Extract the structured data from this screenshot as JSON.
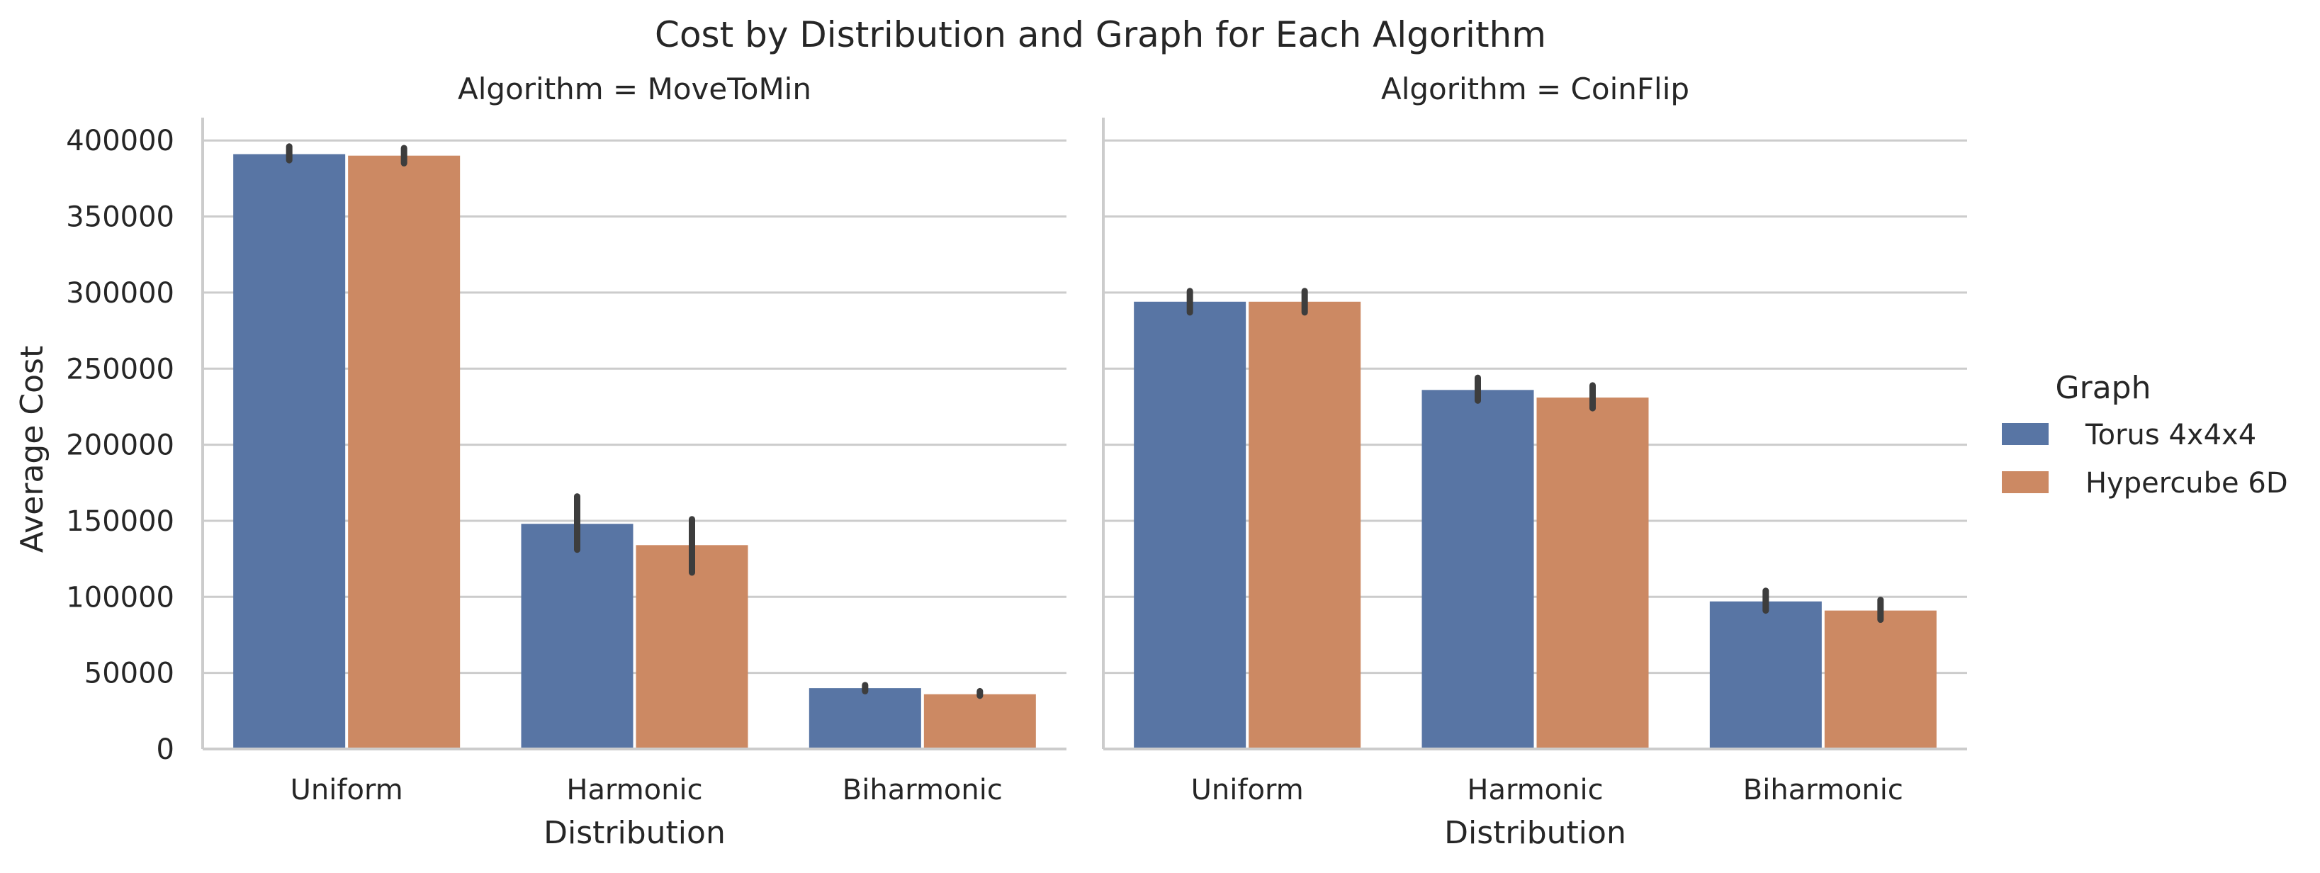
{
  "chart_data": {
    "type": "bar",
    "title": "Cost by Distribution and Graph for Each Algorithm",
    "ylabel": "Average Cost",
    "xlabel": "Distribution",
    "ylim": [
      0,
      415000
    ],
    "yticks": [
      0,
      50000,
      100000,
      150000,
      200000,
      250000,
      300000,
      350000,
      400000
    ],
    "categories": [
      "Uniform",
      "Harmonic",
      "Biharmonic"
    ],
    "grid": "horizontal",
    "legend": {
      "title": "Graph",
      "placement": "right",
      "entries": [
        "Torus 4x4x4",
        "Hypercube 6D"
      ]
    },
    "colors": {
      "Torus 4x4x4": "#5875a4",
      "Hypercube 6D": "#cc8963"
    },
    "panels": [
      {
        "title": "Algorithm = MoveToMin",
        "series": [
          {
            "name": "Torus 4x4x4",
            "values": [
              391000,
              148000,
              40000
            ],
            "ci": [
              [
                387000,
                396000
              ],
              [
                131000,
                166000
              ],
              [
                38000,
                42000
              ]
            ]
          },
          {
            "name": "Hypercube 6D",
            "values": [
              390000,
              134000,
              36000
            ],
            "ci": [
              [
                385000,
                395000
              ],
              [
                116000,
                151000
              ],
              [
                35000,
                38000
              ]
            ]
          }
        ]
      },
      {
        "title": "Algorithm = CoinFlip",
        "series": [
          {
            "name": "Torus 4x4x4",
            "values": [
              294000,
              236000,
              97000
            ],
            "ci": [
              [
                287000,
                301000
              ],
              [
                229000,
                244000
              ],
              [
                91000,
                104000
              ]
            ]
          },
          {
            "name": "Hypercube 6D",
            "values": [
              294000,
              231000,
              91000
            ],
            "ci": [
              [
                287000,
                301000
              ],
              [
                224000,
                239000
              ],
              [
                85000,
                98000
              ]
            ]
          }
        ]
      }
    ]
  }
}
